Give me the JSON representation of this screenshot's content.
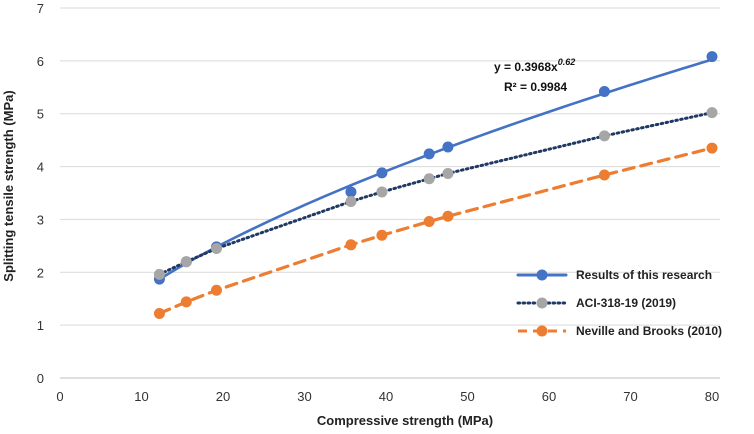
{
  "chart_data": {
    "type": "scatter",
    "xlabel": "Compressive strength (MPa)",
    "ylabel": "Splitting tensile strength (MPa)",
    "xlim": [
      0,
      80
    ],
    "ylim": [
      0,
      7
    ],
    "xticks": [
      "0",
      "10",
      "20",
      "30",
      "40",
      "50",
      "60",
      "70",
      "80"
    ],
    "yticks": [
      "0",
      "1",
      "2",
      "3",
      "4",
      "5",
      "6",
      "7"
    ],
    "grid": "horizontal",
    "legend_position": "bottom-right",
    "series": [
      {
        "name": "Results of this research",
        "color": "#4472C4",
        "line_style": "solid",
        "fit": "power",
        "x": [
          12.2,
          15.5,
          19.2,
          35.7,
          39.5,
          45.3,
          47.6,
          66.8,
          80.0
        ],
        "y": [
          1.87,
          2.2,
          2.48,
          3.52,
          3.88,
          4.24,
          4.37,
          5.42,
          6.08
        ]
      },
      {
        "name": "ACI-318-19 (2019)",
        "color": "#A6A6A6",
        "line_color": "#1F3864",
        "line_style": "dotted",
        "x": [
          12.2,
          15.5,
          19.2,
          35.7,
          39.5,
          45.3,
          47.6,
          66.8,
          80.0
        ],
        "y": [
          1.96,
          2.2,
          2.45,
          3.34,
          3.52,
          3.77,
          3.87,
          4.58,
          5.02
        ]
      },
      {
        "name": "Neville and Brooks (2010)",
        "color": "#ED7D31",
        "line_style": "dashed",
        "x": [
          12.2,
          15.5,
          19.2,
          35.7,
          39.5,
          45.3,
          47.6,
          66.8,
          80.0
        ],
        "y": [
          1.22,
          1.44,
          1.66,
          2.52,
          2.7,
          2.96,
          3.06,
          3.84,
          4.35
        ]
      }
    ],
    "annotations": {
      "equation_prefix": "y = 0.3968x",
      "equation_exponent": "0.62",
      "r_squared": "R² = 0.9984"
    }
  }
}
